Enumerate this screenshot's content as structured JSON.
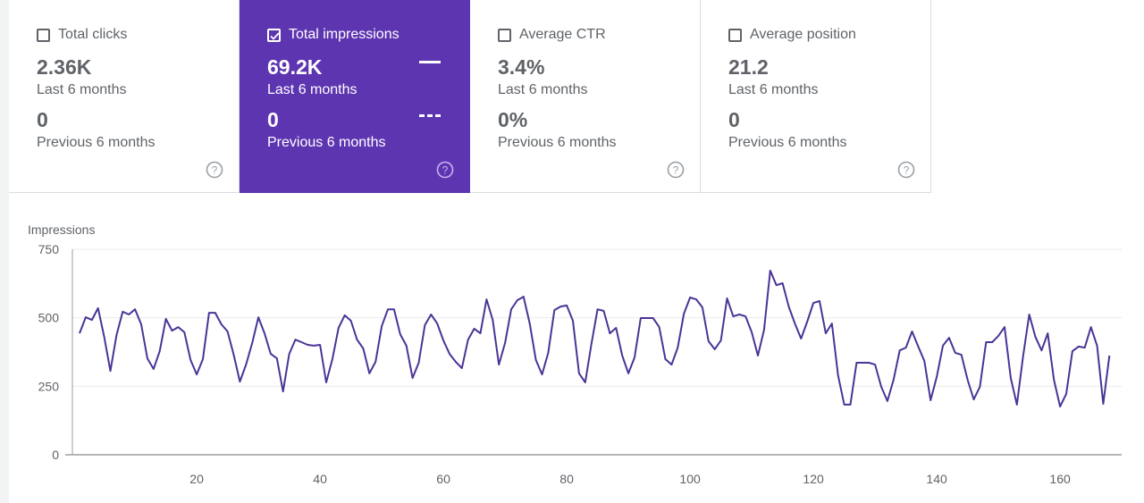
{
  "cards": [
    {
      "id": "total-clicks",
      "label": "Total clicks",
      "checked": false,
      "value": "2.36K",
      "value_period": "Last 6 months",
      "prev_value": "0",
      "prev_period": "Previous 6 months"
    },
    {
      "id": "total-impressions",
      "label": "Total impressions",
      "checked": true,
      "value": "69.2K",
      "value_period": "Last 6 months",
      "prev_value": "0",
      "prev_period": "Previous 6 months"
    },
    {
      "id": "average-ctr",
      "label": "Average CTR",
      "checked": false,
      "value": "3.4%",
      "value_period": "Last 6 months",
      "prev_value": "0%",
      "prev_period": "Previous 6 months"
    },
    {
      "id": "average-position",
      "label": "Average position",
      "checked": false,
      "value": "21.2",
      "value_period": "Last 6 months",
      "prev_value": "0",
      "prev_period": "Previous 6 months"
    }
  ],
  "colors": {
    "accent": "#5e35b1",
    "line": "#4a3496",
    "text": "#5f6368",
    "grid": "#ececec",
    "axis": "#9e9e9e"
  },
  "chart_data": {
    "type": "line",
    "title": "",
    "xlabel": "",
    "ylabel": "Impressions",
    "ylim": [
      0,
      750
    ],
    "xlim": [
      1,
      168
    ],
    "y_ticks": [
      0,
      250,
      500,
      750
    ],
    "x_ticks": [
      20,
      40,
      60,
      80,
      100,
      120,
      140,
      160
    ],
    "grid": true,
    "legend": "none",
    "series": [
      {
        "name": "Impressions",
        "x_start": 1,
        "values": [
          443,
          502,
          492,
          535,
          430,
          306,
          437,
          522,
          512,
          531,
          476,
          352,
          313,
          378,
          496,
          453,
          466,
          447,
          346,
          293,
          349,
          518,
          518,
          476,
          450,
          365,
          267,
          329,
          408,
          502,
          443,
          368,
          352,
          231,
          368,
          420,
          411,
          401,
          398,
          401,
          264,
          349,
          463,
          509,
          489,
          420,
          388,
          297,
          339,
          469,
          531,
          531,
          440,
          398,
          280,
          336,
          473,
          512,
          479,
          417,
          368,
          339,
          316,
          420,
          460,
          443,
          567,
          492,
          329,
          408,
          531,
          564,
          577,
          479,
          346,
          293,
          372,
          528,
          541,
          545,
          489,
          297,
          264,
          404,
          531,
          525,
          443,
          463,
          362,
          297,
          355,
          499,
          499,
          499,
          466,
          349,
          329,
          391,
          515,
          574,
          567,
          538,
          414,
          385,
          417,
          571,
          505,
          512,
          505,
          447,
          362,
          456,
          672,
          619,
          626,
          541,
          479,
          424,
          486,
          554,
          561,
          443,
          479,
          290,
          183,
          183,
          336,
          336,
          336,
          329,
          248,
          196,
          274,
          381,
          391,
          450,
          395,
          342,
          199,
          284,
          398,
          427,
          372,
          365,
          274,
          202,
          248,
          411,
          411,
          434,
          466,
          280,
          183,
          359,
          512,
          430,
          381,
          443,
          274,
          176,
          222,
          378,
          395,
          391,
          466,
          398,
          186,
          362
        ]
      }
    ]
  }
}
